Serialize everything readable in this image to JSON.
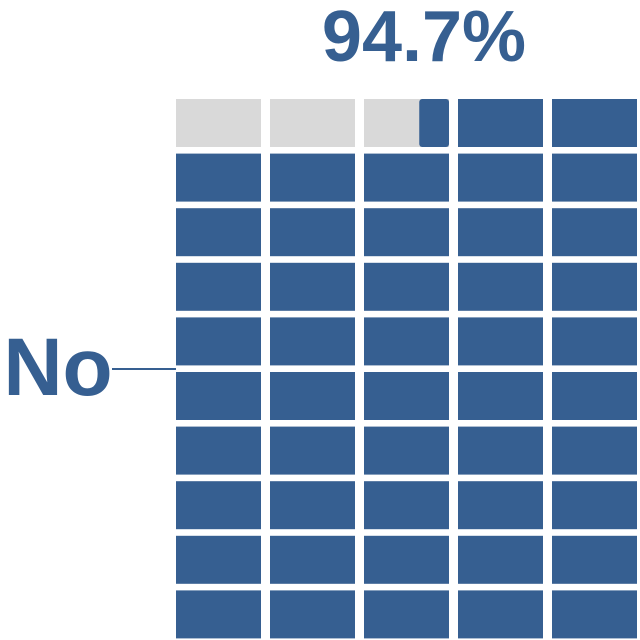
{
  "chart_data": {
    "type": "waffle",
    "title": "",
    "value_label": "94.7%",
    "category_label": "No",
    "value_percent": 94.7,
    "grid": {
      "rows": 10,
      "columns": 5,
      "total_cells": 50
    },
    "fill_color": "#365f91",
    "empty_color": "#d9d9d9",
    "leader_line_color": "#365f91",
    "grid_lines": false,
    "legend": "none"
  }
}
